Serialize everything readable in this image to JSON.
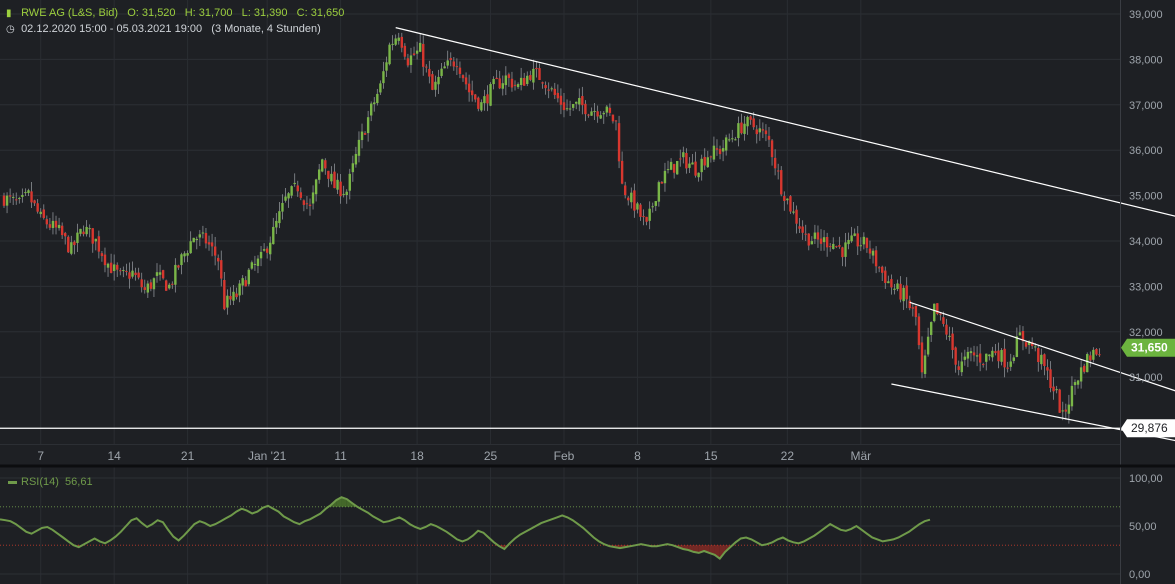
{
  "instrument": {
    "name": "RWE AG (L&S, Bid)",
    "open": "O: 31,520",
    "high": "H: 31,700",
    "low": "L: 31,390",
    "close": "C: 31,650",
    "range": "02.12.2020 15:00 - 05.03.2021 19:00",
    "interval": "(3 Monate, 4 Stunden)"
  },
  "price_axis": {
    "ticks": [
      "39,000",
      "38,000",
      "37,000",
      "36,000",
      "35,000",
      "34,000",
      "33,000",
      "32,000",
      "31,000"
    ],
    "last_price": "31,650",
    "hline_price": "29,876"
  },
  "date_axis": {
    "labels": [
      "7",
      "14",
      "21",
      "Jan '21",
      "11",
      "18",
      "25",
      "Feb",
      "8",
      "15",
      "22",
      "Mär"
    ]
  },
  "rsi": {
    "label": "RSI(14)",
    "value": "56,61",
    "ticks": [
      "100,00",
      "50,00",
      "0,00"
    ]
  },
  "colors": {
    "background": "#1e2024",
    "up": "#7ab648",
    "down": "#d7372f",
    "line": "#ffffff",
    "rsi": "#6f9a4a",
    "last_price_badge": "#6cb43f"
  },
  "chart_data": [
    {
      "type": "candlestick",
      "title": "RWE AG (L&S, Bid)",
      "interval": "4h",
      "ylim": [
        29.5,
        39.2
      ],
      "y_ticks": [
        31,
        32,
        33,
        34,
        35,
        36,
        37,
        38,
        39
      ],
      "x_tick_labels": [
        "7",
        "14",
        "21",
        "Jan '21",
        "11",
        "18",
        "25",
        "Feb",
        "8",
        "15",
        "22",
        "Mär"
      ],
      "close_path": [
        [
          0,
          34.95
        ],
        [
          5,
          34.8
        ],
        [
          8,
          35.0
        ],
        [
          12,
          34.5
        ],
        [
          18,
          34.2
        ],
        [
          22,
          33.8
        ],
        [
          26,
          34.3
        ],
        [
          30,
          34.0
        ],
        [
          34,
          33.5
        ],
        [
          38,
          33.2
        ],
        [
          42,
          33.3
        ],
        [
          46,
          32.9
        ],
        [
          50,
          33.2
        ],
        [
          54,
          33.0
        ],
        [
          58,
          33.6
        ],
        [
          62,
          34.1
        ],
        [
          66,
          34.0
        ],
        [
          70,
          33.6
        ],
        [
          72,
          32.6
        ],
        [
          76,
          32.8
        ],
        [
          80,
          33.3
        ],
        [
          84,
          33.6
        ],
        [
          88,
          34.2
        ],
        [
          92,
          34.9
        ],
        [
          96,
          35.2
        ],
        [
          100,
          34.7
        ],
        [
          104,
          35.8
        ],
        [
          108,
          35.2
        ],
        [
          112,
          35.1
        ],
        [
          116,
          36.1
        ],
        [
          120,
          36.9
        ],
        [
          123,
          37.4
        ],
        [
          126,
          38.3
        ],
        [
          129,
          38.6
        ],
        [
          132,
          38.0
        ],
        [
          136,
          38.2
        ],
        [
          140,
          37.3
        ],
        [
          144,
          37.8
        ],
        [
          148,
          38.0
        ],
        [
          152,
          37.3
        ],
        [
          156,
          37.0
        ],
        [
          160,
          37.4
        ],
        [
          164,
          37.6
        ],
        [
          168,
          37.4
        ],
        [
          172,
          37.7
        ],
        [
          176,
          37.6
        ],
        [
          180,
          37.2
        ],
        [
          184,
          36.9
        ],
        [
          188,
          37.0
        ],
        [
          192,
          36.9
        ],
        [
          196,
          36.9
        ],
        [
          200,
          36.6
        ],
        [
          202,
          35.2
        ],
        [
          206,
          34.8
        ],
        [
          210,
          34.3
        ],
        [
          214,
          35.3
        ],
        [
          218,
          35.6
        ],
        [
          222,
          35.8
        ],
        [
          226,
          35.6
        ],
        [
          230,
          35.9
        ],
        [
          234,
          36.0
        ],
        [
          238,
          36.3
        ],
        [
          242,
          36.6
        ],
        [
          246,
          36.5
        ],
        [
          250,
          36.2
        ],
        [
          254,
          35.2
        ],
        [
          258,
          34.6
        ],
        [
          262,
          34.1
        ],
        [
          266,
          34.0
        ],
        [
          270,
          34.0
        ],
        [
          274,
          33.8
        ],
        [
          278,
          34.0
        ],
        [
          282,
          33.9
        ],
        [
          286,
          33.4
        ],
        [
          290,
          33.0
        ],
        [
          294,
          32.8
        ],
        [
          298,
          32.3
        ],
        [
          300,
          31.0
        ],
        [
          304,
          32.5
        ],
        [
          308,
          32.0
        ],
        [
          312,
          31.2
        ],
        [
          316,
          31.5
        ],
        [
          320,
          31.4
        ],
        [
          324,
          31.6
        ],
        [
          328,
          31.3
        ],
        [
          332,
          31.9
        ],
        [
          336,
          31.7
        ],
        [
          340,
          31.2
        ],
        [
          344,
          30.6
        ],
        [
          346,
          30.1
        ],
        [
          350,
          30.9
        ],
        [
          354,
          31.4
        ],
        [
          358,
          31.65
        ]
      ],
      "trendlines": [
        {
          "points": [
            [
              128,
              38.7
            ],
            [
              447,
              33.5
            ]
          ]
        },
        {
          "points": [
            [
              296,
              32.65
            ],
            [
              434,
              29.55
            ]
          ]
        },
        {
          "points": [
            [
              290,
              30.85
            ],
            [
              398,
              29.4
            ]
          ]
        }
      ],
      "horizontal_line": 29.876,
      "last_value": 31.65
    },
    {
      "type": "line",
      "title": "RSI(14)",
      "ylim": [
        0,
        100
      ],
      "y_ticks": [
        0,
        50,
        100
      ],
      "reference_levels": [
        70,
        30
      ],
      "values": [
        57,
        56,
        55,
        52,
        48,
        44,
        42,
        45,
        48,
        49,
        46,
        42,
        38,
        34,
        30,
        28,
        31,
        34,
        37,
        34,
        32,
        35,
        39,
        44,
        50,
        56,
        58,
        53,
        49,
        52,
        56,
        54,
        46,
        39,
        35,
        40,
        46,
        52,
        55,
        53,
        50,
        52,
        55,
        58,
        61,
        65,
        68,
        66,
        63,
        65,
        69,
        71,
        68,
        65,
        60,
        57,
        54,
        52,
        55,
        57,
        60,
        63,
        68,
        72,
        77,
        80,
        78,
        74,
        70,
        67,
        64,
        60,
        57,
        54,
        55,
        57,
        59,
        56,
        52,
        49,
        47,
        49,
        52,
        50,
        47,
        44,
        40,
        36,
        34,
        36,
        40,
        45,
        43,
        38,
        33,
        29,
        26,
        32,
        37,
        41,
        44,
        47,
        50,
        53,
        55,
        57,
        59,
        61,
        59,
        56,
        52,
        48,
        43,
        38,
        34,
        31,
        29,
        28,
        27,
        28,
        29,
        30,
        31,
        30,
        29,
        29,
        30,
        31,
        30,
        28,
        26,
        25,
        23,
        22,
        24,
        22,
        20,
        16,
        23,
        28,
        33,
        37,
        38,
        36,
        33,
        30,
        31,
        33,
        36,
        38,
        35,
        33,
        32,
        34,
        37,
        40,
        44,
        48,
        52,
        49,
        46,
        45,
        47,
        50,
        46,
        42,
        38,
        36,
        34,
        35,
        36,
        38,
        41,
        44,
        48,
        52,
        55,
        56.61
      ],
      "last_value": 56.61
    }
  ]
}
